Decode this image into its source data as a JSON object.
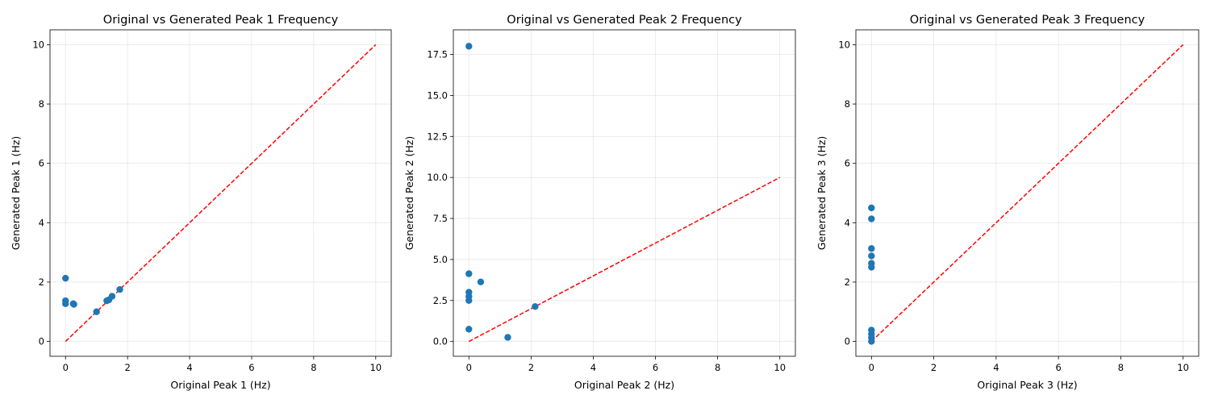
{
  "chart_data": [
    {
      "type": "scatter",
      "title": "Original vs Generated Peak 1 Frequency",
      "xlabel": "Original Peak 1 (Hz)",
      "ylabel": "Generated Peak 1 (Hz)",
      "xlim": [
        -0.5,
        10.5
      ],
      "ylim": [
        -0.5,
        10.5
      ],
      "xticks": [
        0,
        2,
        4,
        6,
        8,
        10
      ],
      "yticks": [
        0,
        2,
        4,
        6,
        8,
        10
      ],
      "tick_labels_x": [
        "0",
        "2",
        "4",
        "6",
        "8",
        "10"
      ],
      "tick_labels_y": [
        "0",
        "2",
        "4",
        "6",
        "8",
        "10"
      ],
      "grid": true,
      "reference_line": {
        "x": [
          0,
          10
        ],
        "y": [
          0,
          10
        ],
        "color": "#ff0000",
        "style": "dashed"
      },
      "points": {
        "x": [
          0,
          0,
          0,
          0.25,
          0.27,
          1.0,
          1.33,
          1.4,
          1.5,
          1.75
        ],
        "y": [
          2.13,
          1.37,
          1.27,
          1.27,
          1.25,
          1.0,
          1.37,
          1.4,
          1.52,
          1.75
        ]
      },
      "color": "#1f77b4"
    },
    {
      "type": "scatter",
      "title": "Original vs Generated Peak 2 Frequency",
      "xlabel": "Original Peak 2 (Hz)",
      "ylabel": "Generated Peak 2 (Hz)",
      "xlim": [
        -0.5,
        10.5
      ],
      "ylim": [
        -0.9,
        19.0
      ],
      "xticks": [
        0,
        2,
        4,
        6,
        8,
        10
      ],
      "yticks": [
        0,
        2.5,
        5,
        7.5,
        10,
        12.5,
        15,
        17.5
      ],
      "tick_labels_x": [
        "0",
        "2",
        "4",
        "6",
        "8",
        "10"
      ],
      "tick_labels_y": [
        "0.0",
        "2.5",
        "5.0",
        "7.5",
        "10.0",
        "12.5",
        "15.0",
        "17.5"
      ],
      "grid": true,
      "reference_line": {
        "x": [
          0,
          10
        ],
        "y": [
          0,
          10
        ],
        "color": "#ff0000",
        "style": "dashed"
      },
      "points": {
        "x": [
          0,
          0,
          0,
          0,
          0,
          0,
          0.38,
          1.25,
          2.13
        ],
        "y": [
          18.0,
          4.13,
          3.0,
          2.75,
          2.5,
          0.75,
          3.63,
          0.25,
          2.13
        ]
      },
      "color": "#1f77b4"
    },
    {
      "type": "scatter",
      "title": "Original vs Generated Peak 3 Frequency",
      "xlabel": "Original Peak 3 (Hz)",
      "ylabel": "Generated Peak 3 (Hz)",
      "xlim": [
        -0.5,
        10.5
      ],
      "ylim": [
        -0.5,
        10.5
      ],
      "xticks": [
        0,
        2,
        4,
        6,
        8,
        10
      ],
      "yticks": [
        0,
        2,
        4,
        6,
        8,
        10
      ],
      "tick_labels_x": [
        "0",
        "2",
        "4",
        "6",
        "8",
        "10"
      ],
      "tick_labels_y": [
        "0",
        "2",
        "4",
        "6",
        "8",
        "10"
      ],
      "grid": true,
      "reference_line": {
        "x": [
          0,
          10
        ],
        "y": [
          0,
          10
        ],
        "color": "#ff0000",
        "style": "dashed"
      },
      "points": {
        "x": [
          0,
          0,
          0,
          0,
          0,
          0,
          0,
          0,
          0,
          0
        ],
        "y": [
          4.5,
          4.13,
          3.13,
          2.88,
          2.63,
          2.5,
          0.38,
          0.25,
          0.13,
          0.0
        ]
      },
      "color": "#1f77b4"
    }
  ]
}
